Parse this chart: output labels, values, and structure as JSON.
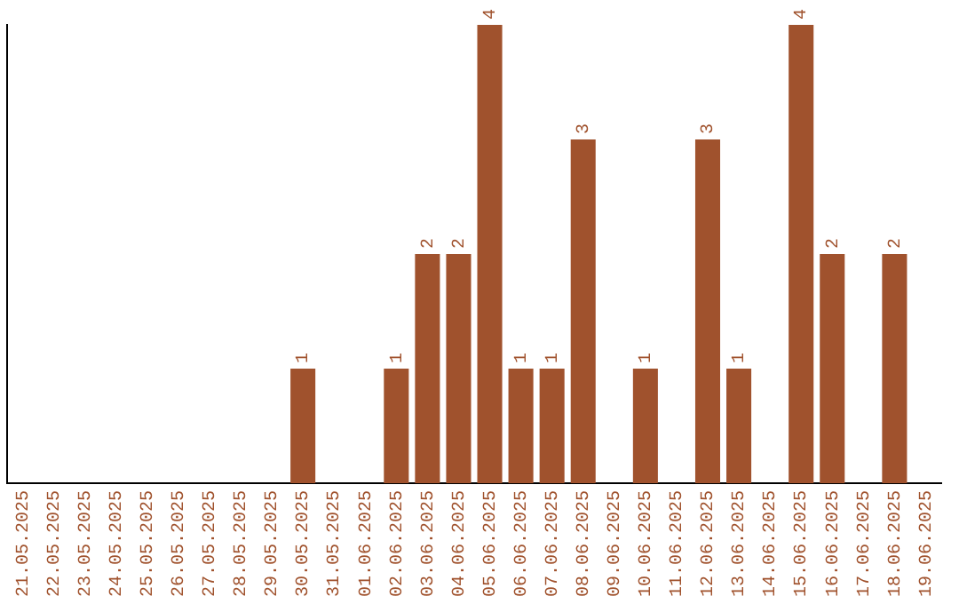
{
  "chart_data": {
    "type": "bar",
    "categories": [
      "21.05.2025",
      "22.05.2025",
      "23.05.2025",
      "24.05.2025",
      "25.05.2025",
      "26.05.2025",
      "27.05.2025",
      "28.05.2025",
      "29.05.2025",
      "30.05.2025",
      "31.05.2025",
      "01.06.2025",
      "02.06.2025",
      "03.06.2025",
      "04.06.2025",
      "05.06.2025",
      "06.06.2025",
      "07.06.2025",
      "08.06.2025",
      "09.06.2025",
      "10.06.2025",
      "11.06.2025",
      "12.06.2025",
      "13.06.2025",
      "14.06.2025",
      "15.06.2025",
      "16.06.2025",
      "17.06.2025",
      "18.06.2025",
      "19.06.2025"
    ],
    "values": [
      0,
      0,
      0,
      0,
      0,
      0,
      0,
      0,
      0,
      1,
      0,
      0,
      1,
      2,
      2,
      4,
      1,
      1,
      3,
      0,
      1,
      0,
      3,
      1,
      0,
      4,
      2,
      0,
      2,
      0
    ],
    "value_labels": [
      null,
      null,
      null,
      null,
      null,
      null,
      null,
      null,
      null,
      "1",
      null,
      null,
      "1",
      "2",
      "2",
      "4",
      "1",
      "1",
      "3",
      null,
      "1",
      null,
      "3",
      "1",
      null,
      "4",
      "2",
      null,
      "2",
      null
    ],
    "color": "#a0522d",
    "ylim": [
      0,
      4
    ],
    "tick_labels": "x",
    "grid": false,
    "legend": false
  }
}
